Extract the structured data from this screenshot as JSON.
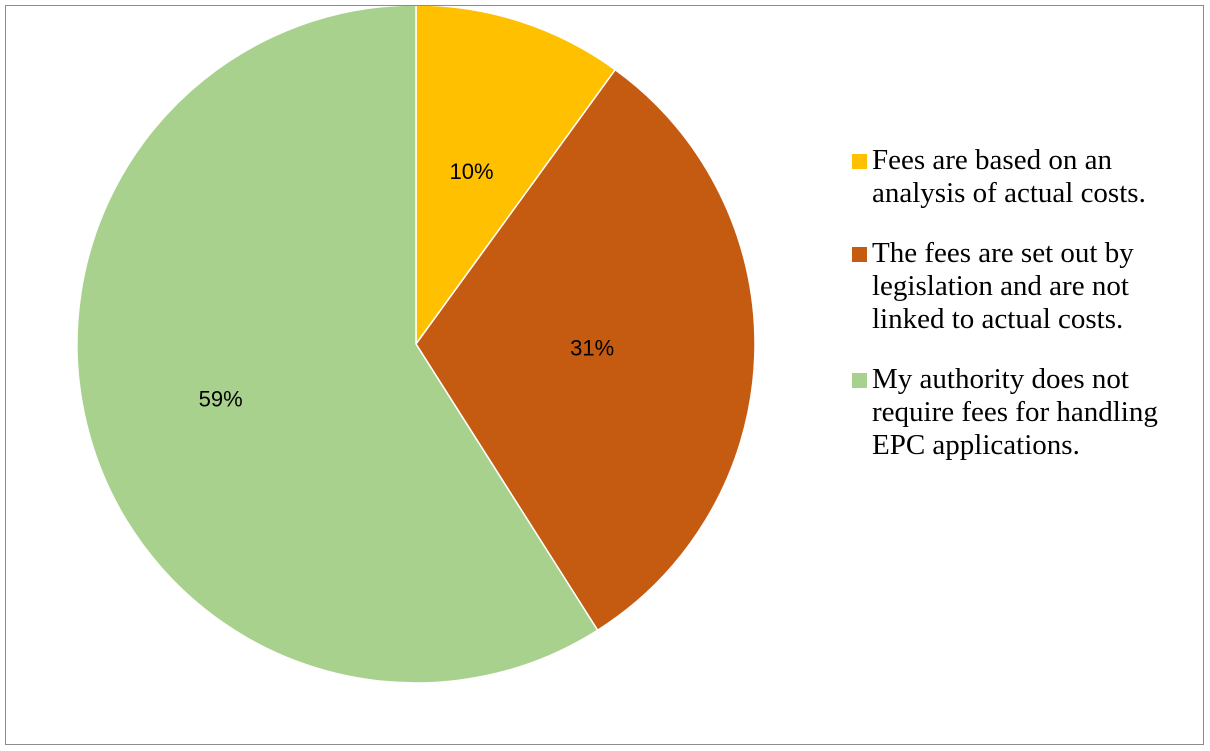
{
  "chart_data": {
    "type": "pie",
    "title": "",
    "start_angle_deg": 0,
    "direction": "clockwise",
    "legend_position": "right",
    "slices": [
      {
        "label": "Fees are based on an analysis of actual costs.",
        "value": 10,
        "display": "10%",
        "color": "#ffc000"
      },
      {
        "label": "The fees are set out by legislation and are not linked to actual costs.",
        "value": 31,
        "display": "31%",
        "color": "#c55a11"
      },
      {
        "label": "My authority does not require fees for handling EPC applications.",
        "value": 59,
        "display": "59%",
        "color": "#a9d18e"
      }
    ]
  },
  "legend": {
    "items": [
      {
        "lines": [
          "Fees are based on an",
          "analysis of actual costs."
        ]
      },
      {
        "lines": [
          "The fees are set out by",
          "legislation and are not",
          "linked to actual costs."
        ]
      },
      {
        "lines": [
          "My authority does not",
          "require fees for handling",
          "EPC applications."
        ]
      }
    ]
  }
}
